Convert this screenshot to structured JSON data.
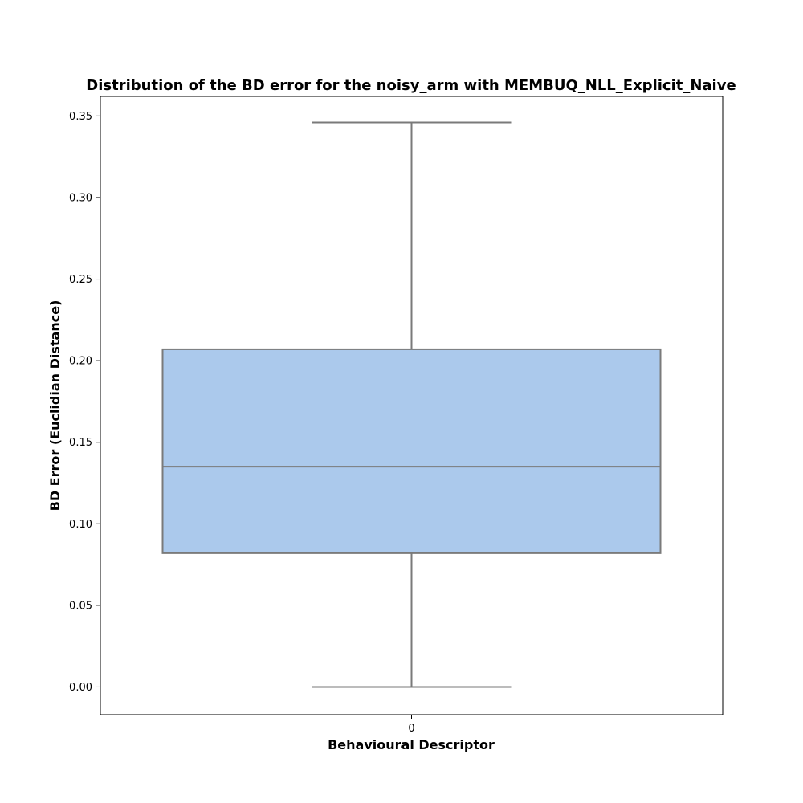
{
  "chart_data": {
    "type": "box",
    "title": "Distribution of the BD error for the noisy_arm with MEMBUQ_NLL_Explicit_Naive",
    "xlabel": "Behavioural Descriptor",
    "ylabel": "BD Error (Euclidian Distance)",
    "categories": [
      "0"
    ],
    "ylim": [
      -0.017,
      0.362
    ],
    "yticks": [
      0.0,
      0.05,
      0.1,
      0.15,
      0.2,
      0.25,
      0.3,
      0.35
    ],
    "ytick_labels": [
      "0.00",
      "0.05",
      "0.10",
      "0.15",
      "0.20",
      "0.25",
      "0.30",
      "0.35"
    ],
    "boxes": [
      {
        "category": "0",
        "whisker_low": 0.0,
        "q1": 0.082,
        "median": 0.135,
        "q3": 0.207,
        "whisker_high": 0.346
      }
    ],
    "colors": {
      "box_fill": "#abc9ec",
      "box_edge": "#7a7a7a",
      "frame": "#000000"
    },
    "grid": false
  }
}
